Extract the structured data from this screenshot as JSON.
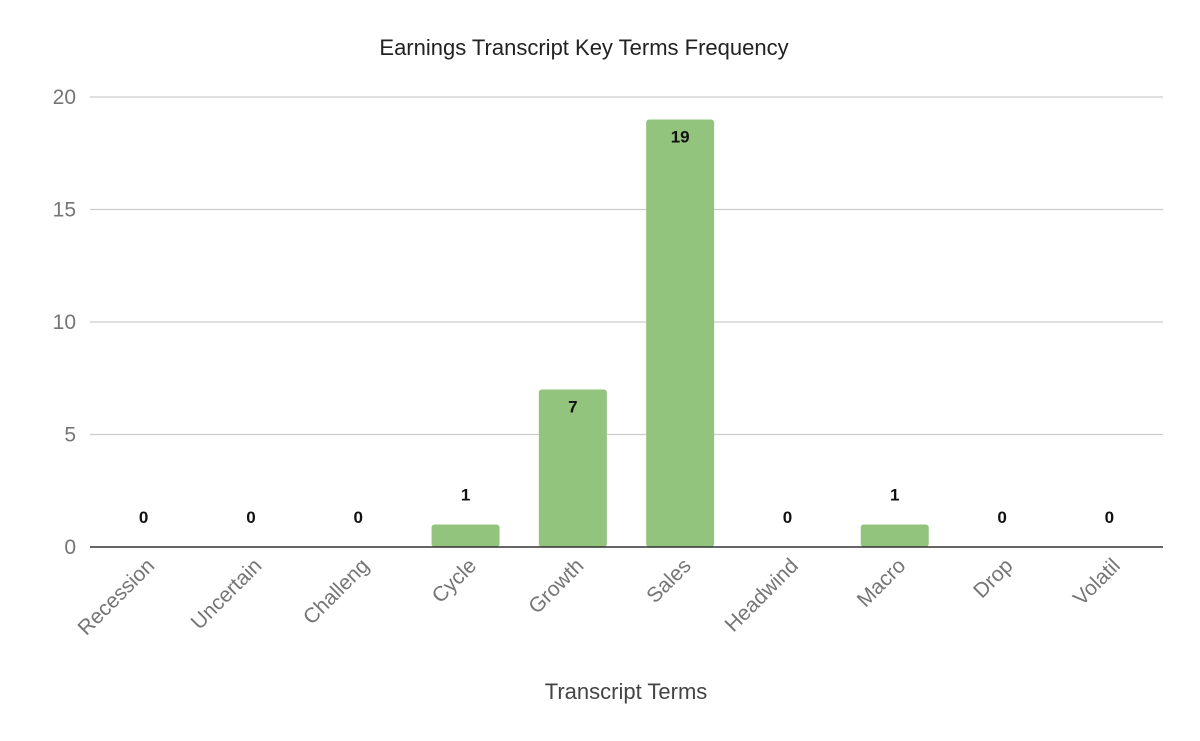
{
  "chart_data": {
    "type": "bar",
    "title": "Earnings Transcript Key Terms Frequency",
    "xlabel": "Transcript Terms",
    "ylabel": "",
    "categories": [
      "Recession",
      "Uncertain",
      "Challeng",
      "Cycle",
      "Growth",
      "Sales",
      "Headwind",
      "Macro",
      "Drop",
      "Volatil"
    ],
    "values": [
      0,
      0,
      0,
      1,
      7,
      19,
      0,
      1,
      0,
      0
    ],
    "ylim": [
      0,
      20
    ],
    "yticks": [
      0,
      5,
      10,
      15,
      20
    ],
    "grid": true,
    "legend": "none",
    "data_labels": true,
    "colors": {
      "bar": "#93c47d",
      "grid": "#cccccc",
      "baseline": "#333333"
    }
  }
}
